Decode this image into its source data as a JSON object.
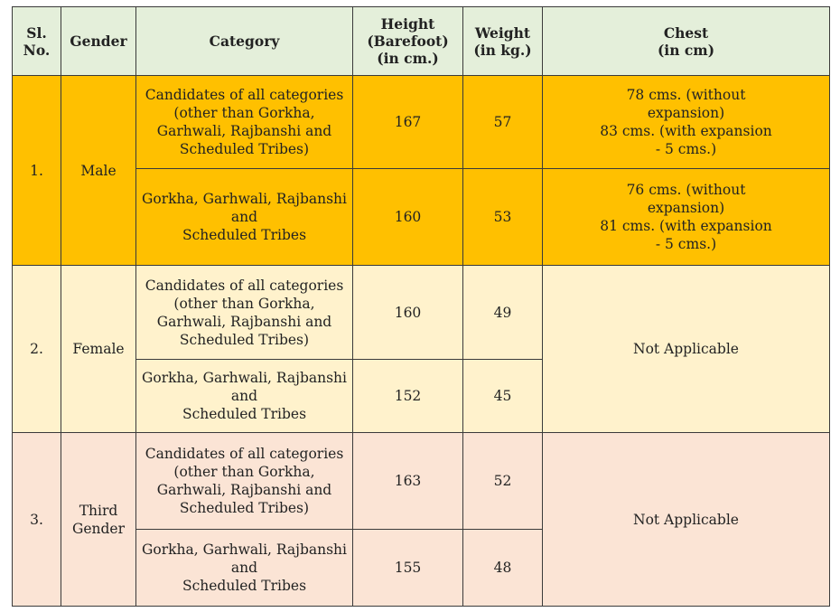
{
  "headers": {
    "sl_no": "Sl.\nNo.",
    "gender": "Gender",
    "category": "Category",
    "height": "Height\n(Barefoot)\n(in cm.)",
    "weight": "Weight\n(in kg.)",
    "chest": "Chest\n(in cm)"
  },
  "rows": [
    {
      "sl_no": "1.",
      "gender": "Male",
      "entries": [
        {
          "category": "Candidates of all categories\n(other than Gorkha,\nGarhwali, Rajbanshi and\nScheduled Tribes)",
          "height": "167",
          "weight": "57",
          "chest": "78 cms. (without\nexpansion)\n83 cms. (with expansion\n- 5 cms.)"
        },
        {
          "category": "Gorkha, Garhwali, Rajbanshi\nand\nScheduled Tribes",
          "height": "160",
          "weight": "53",
          "chest": "76 cms. (without\nexpansion)\n81 cms. (with expansion\n- 5 cms.)"
        }
      ]
    },
    {
      "sl_no": "2.",
      "gender": "Female",
      "chest": "Not Applicable",
      "entries": [
        {
          "category": "Candidates of all categories\n(other than Gorkha,\nGarhwali, Rajbanshi and\nScheduled Tribes)",
          "height": "160",
          "weight": "49"
        },
        {
          "category": "Gorkha, Garhwali, Rajbanshi\nand\nScheduled Tribes",
          "height": "152",
          "weight": "45"
        }
      ]
    },
    {
      "sl_no": "3.",
      "gender": "Third\nGender",
      "chest": "Not Applicable",
      "entries": [
        {
          "category": "Candidates of all categories\n(other than Gorkha,\nGarhwali, Rajbanshi and\nScheduled Tribes)",
          "height": "163",
          "weight": "52"
        },
        {
          "category": "Gorkha, Garhwali, Rajbanshi\nand\nScheduled Tribes",
          "height": "155",
          "weight": "48"
        }
      ]
    }
  ],
  "colors": {
    "header_bg": "#e4efda",
    "male_bg": "#ffc000",
    "female_bg": "#fff2cc",
    "third_gender_bg": "#fbe4d5",
    "border": "#3a3a3a"
  }
}
